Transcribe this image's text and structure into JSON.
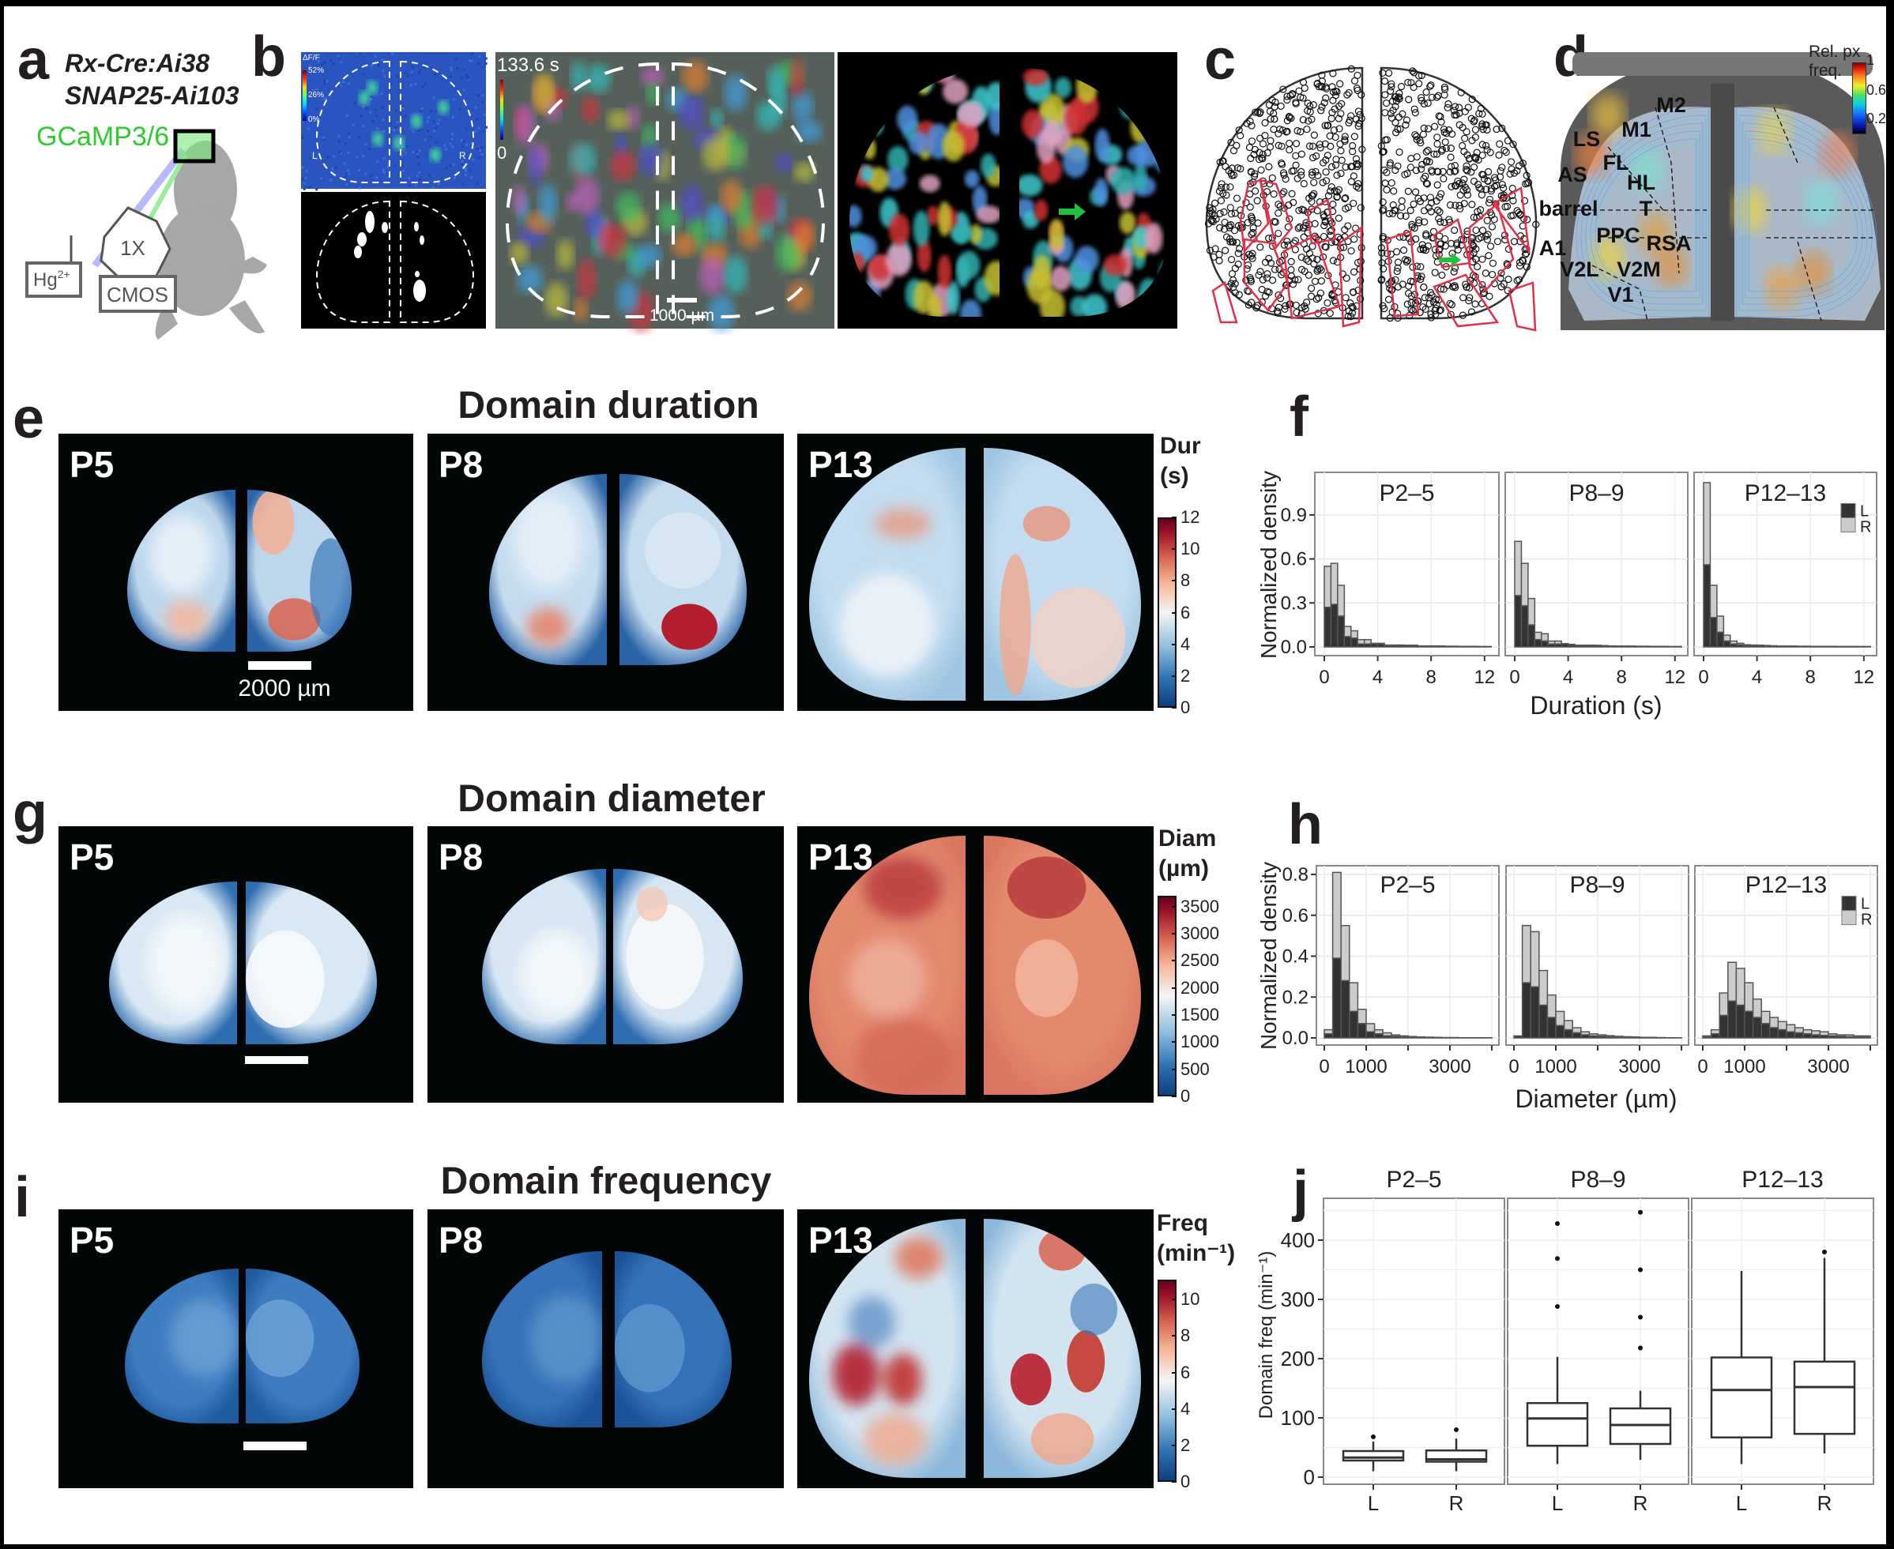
{
  "panel_labels": {
    "a": "a",
    "b": "b",
    "c": "c",
    "d": "d",
    "e": "e",
    "f": "f",
    "g": "g",
    "h": "h",
    "i": "i",
    "j": "j"
  },
  "a": {
    "line1": "Rx-Cre:Ai38",
    "line2": "SNAP25-Ai103",
    "indicator": "GCaMP3/6",
    "indicator_color": "#2ecc2e",
    "objective": "1X",
    "lamp": "Hg",
    "lamp_sup": "2+",
    "camera": "CMOS"
  },
  "b": {
    "cbar_title": "ΔF/F",
    "cbar_ticks": [
      "52%",
      "26%",
      "0%"
    ],
    "left": "L",
    "right": "R",
    "time": "133.6 s",
    "time_cbar_min": "0",
    "scalebar": "1000 µm",
    "arrow_color": "#22c040"
  },
  "d": {
    "cbar_title_1": "Rel. px",
    "cbar_title_2": "freq.",
    "cbar_ticks": [
      "1",
      "0.6",
      "0.2"
    ],
    "regions": [
      "M2",
      "M1",
      "LS",
      "FL",
      "AS",
      "HL",
      "barrel",
      "T",
      "PPC",
      "RSA",
      "A1",
      "V2L",
      "V2M",
      "V1"
    ]
  },
  "heatmaps": {
    "duration": {
      "title": "Domain duration",
      "ages": [
        "P5",
        "P8",
        "P13"
      ],
      "scalebar": "2000 µm",
      "cbar": {
        "title1": "Dur",
        "title2": "(s)",
        "ticks": [
          "0",
          "2",
          "4",
          "6",
          "8",
          "10",
          "12"
        ],
        "min": 0,
        "max": 12
      }
    },
    "diameter": {
      "title": "Domain diameter",
      "ages": [
        "P5",
        "P8",
        "P13"
      ],
      "cbar": {
        "title1": "Diam",
        "title2": "(µm)",
        "ticks": [
          "0",
          "500",
          "1000",
          "1500",
          "2000",
          "2500",
          "3000",
          "3500"
        ],
        "min": 0,
        "max": 3700
      }
    },
    "frequency": {
      "title": "Domain frequency",
      "ages": [
        "P5",
        "P8",
        "P13"
      ],
      "cbar": {
        "title1": "Freq",
        "title2": "(min⁻¹)",
        "ticks": [
          "0",
          "2",
          "4",
          "6",
          "8",
          "10"
        ],
        "min": 0,
        "max": 11.1
      }
    }
  },
  "chart_data": [
    {
      "id": "f",
      "type": "bar",
      "stacked": true,
      "xlabel": "Duration (s)",
      "ylabel": "Normalized density",
      "xlim": [
        -0.3,
        12.8
      ],
      "ylim": [
        -0.06,
        1.19
      ],
      "xticks": [
        0,
        4,
        8,
        12
      ],
      "yticks": [
        "0.0",
        "0.3",
        "0.6",
        "0.9"
      ],
      "bin_width": 0.5,
      "legend": {
        "position": "top-right",
        "entries": [
          "L",
          "R"
        ],
        "colors": [
          "#333333",
          "#cccccc"
        ]
      },
      "grid": true,
      "facets": [
        {
          "title": "P2–5",
          "L": [
            0.27,
            0.29,
            0.21,
            0.07,
            0.06,
            0.02,
            0.02,
            0.02,
            0.02,
            0.01,
            0.01,
            0.01,
            0.01,
            0.01,
            0.005,
            0.005,
            0.005,
            0.005,
            0.004,
            0.004,
            0.003,
            0.003,
            0.003,
            0.002,
            0.002
          ],
          "R": [
            0.28,
            0.28,
            0.21,
            0.07,
            0.05,
            0.03,
            0.03,
            0.005,
            0.005,
            0.003,
            0.003,
            0.003,
            0.002,
            0.002,
            0.002,
            0.002,
            0.002,
            0.002,
            0.001,
            0.001,
            0.001,
            0.001,
            0.001,
            0.001,
            0.001
          ]
        },
        {
          "title": "P8–9",
          "L": [
            0.35,
            0.28,
            0.15,
            0.05,
            0.04,
            0.02,
            0.02,
            0.02,
            0.015,
            0.01,
            0.01,
            0.01,
            0.01,
            0.008,
            0.006,
            0.005,
            0.005,
            0.005,
            0.004,
            0.004,
            0.003,
            0.003,
            0.003,
            0.002,
            0.002
          ],
          "R": [
            0.37,
            0.29,
            0.18,
            0.05,
            0.05,
            0.02,
            0.02,
            0.003,
            0.003,
            0.002,
            0.002,
            0.002,
            0.001,
            0.001,
            0.001,
            0.001,
            0.001,
            0.001,
            0.001,
            0.001,
            0.001,
            0.001,
            0.001,
            0.001,
            0.001
          ]
        },
        {
          "title": "P12–13",
          "L": [
            0.56,
            0.2,
            0.1,
            0.04,
            0.02,
            0.015,
            0.01,
            0.01,
            0.01,
            0.008,
            0.006,
            0.005,
            0.005,
            0.005,
            0.004,
            0.004,
            0.003,
            0.003,
            0.003,
            0.003,
            0.002,
            0.002,
            0.002,
            0.002,
            0.002
          ],
          "R": [
            0.56,
            0.22,
            0.11,
            0.04,
            0.02,
            0.01,
            0.005,
            0.003,
            0.002,
            0.002,
            0.002,
            0.001,
            0.001,
            0.001,
            0.001,
            0.001,
            0.001,
            0.001,
            0.001,
            0.001,
            0.001,
            0.001,
            0.001,
            0.001,
            0.001
          ]
        }
      ]
    },
    {
      "id": "h",
      "type": "bar",
      "stacked": true,
      "xlabel": "Diameter (µm)",
      "ylabel": "Normalized density",
      "xlim": [
        -190,
        4200
      ],
      "ylim": [
        -0.035,
        0.83
      ],
      "xticks": [
        0,
        1000,
        2000,
        3000,
        4000
      ],
      "xticklabels": [
        "0",
        "1000",
        "",
        "3000",
        ""
      ],
      "yticks": [
        "0.0",
        "0.2",
        "0.4",
        "0.6",
        "0.8"
      ],
      "bin_width": 200,
      "legend": {
        "position": "top-right",
        "entries": [
          "L",
          "R"
        ],
        "colors": [
          "#333333",
          "#cccccc"
        ]
      },
      "grid": true,
      "facets": [
        {
          "title": "P2–5",
          "L": [
            0.02,
            0.39,
            0.28,
            0.13,
            0.07,
            0.03,
            0.02,
            0.01,
            0.008,
            0.005,
            0.004,
            0.003,
            0.002,
            0.002,
            0.001,
            0.001,
            0.001,
            0.001,
            0.001,
            0.001
          ],
          "R": [
            0.02,
            0.42,
            0.27,
            0.14,
            0.07,
            0.04,
            0.02,
            0.015,
            0.007,
            0.005,
            0.003,
            0.002,
            0.002,
            0.001,
            0.001,
            0.001,
            0,
            0,
            0,
            0
          ]
        },
        {
          "title": "P8–9",
          "L": [
            0.01,
            0.27,
            0.25,
            0.16,
            0.1,
            0.06,
            0.04,
            0.025,
            0.015,
            0.01,
            0.008,
            0.006,
            0.005,
            0.004,
            0.003,
            0.002,
            0.002,
            0.001,
            0.001,
            0.001
          ],
          "R": [
            0,
            0.28,
            0.27,
            0.17,
            0.11,
            0.07,
            0.045,
            0.025,
            0.015,
            0.01,
            0.007,
            0.005,
            0.003,
            0.002,
            0.002,
            0.001,
            0.001,
            0.001,
            0,
            0
          ]
        },
        {
          "title": "P12–13",
          "L": [
            0.005,
            0.02,
            0.11,
            0.18,
            0.16,
            0.13,
            0.1,
            0.07,
            0.05,
            0.04,
            0.03,
            0.025,
            0.02,
            0.015,
            0.012,
            0.01,
            0.008,
            0.006,
            0.005,
            0.004
          ],
          "R": [
            0.005,
            0.02,
            0.11,
            0.19,
            0.18,
            0.14,
            0.09,
            0.06,
            0.05,
            0.04,
            0.035,
            0.025,
            0.02,
            0.02,
            0.018,
            0.01,
            0.007,
            0.009,
            0.005,
            0.006
          ]
        }
      ]
    },
    {
      "id": "j",
      "type": "box",
      "ylabel": "Domain freq (min⁻¹)",
      "ylim": [
        -12,
        470
      ],
      "yticks": [
        "0",
        "100",
        "200",
        "300",
        "400"
      ],
      "grid": true,
      "facets": [
        {
          "title": "P2–5",
          "boxes": [
            {
              "label": "L",
              "whisker_low": 10,
              "q1": 28,
              "median": 33,
              "q3": 44,
              "whisker_high": 60,
              "outliers": [
                68
              ]
            },
            {
              "label": "R",
              "whisker_low": 10,
              "q1": 26,
              "median": 30,
              "q3": 45,
              "whisker_high": 65,
              "outliers": [
                80
              ]
            }
          ]
        },
        {
          "title": "P8–9",
          "boxes": [
            {
              "label": "L",
              "whisker_low": 22,
              "q1": 53,
              "median": 99,
              "q3": 125,
              "whisker_high": 203,
              "outliers": [
                288,
                369,
                428
              ]
            },
            {
              "label": "R",
              "whisker_low": 29,
              "q1": 56,
              "median": 88,
              "q3": 116,
              "whisker_high": 146,
              "outliers": [
                218,
                270,
                350,
                447
              ]
            }
          ]
        },
        {
          "title": "P12–13",
          "boxes": [
            {
              "label": "L",
              "whisker_low": 22,
              "q1": 67,
              "median": 147,
              "q3": 202,
              "whisker_high": 348,
              "outliers": []
            },
            {
              "label": "R",
              "whisker_low": 40,
              "q1": 73,
              "median": 152,
              "q3": 195,
              "whisker_high": 370,
              "outliers": [
                380
              ]
            }
          ]
        }
      ]
    }
  ]
}
